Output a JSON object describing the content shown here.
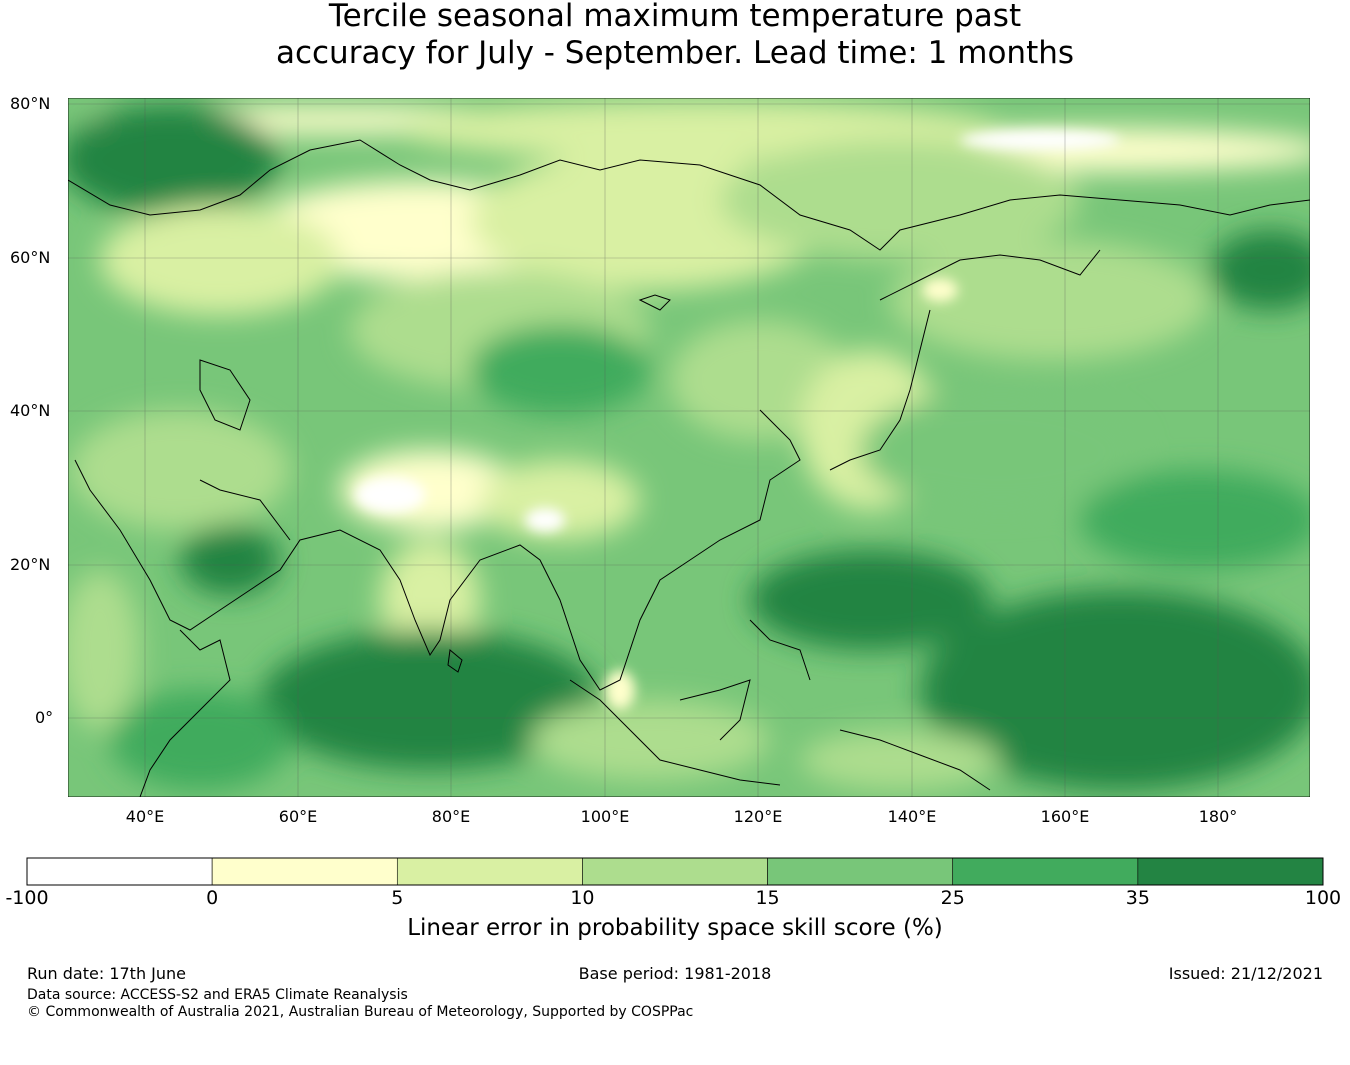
{
  "title": {
    "line1": "Tercile seasonal maximum temperature past",
    "line2": "accuracy for July - September. Lead time: 1 months"
  },
  "map": {
    "lat_labels": [
      "80°N",
      "60°N",
      "40°N",
      "20°N",
      "0°"
    ],
    "lon_labels": [
      "40°E",
      "60°E",
      "80°E",
      "100°E",
      "120°E",
      "140°E",
      "160°E",
      "180°"
    ],
    "lat_range": [
      -10,
      80
    ],
    "lon_range": [
      30,
      192
    ]
  },
  "colorbar": {
    "ticks": [
      "-100",
      "0",
      "5",
      "10",
      "15",
      "25",
      "35",
      "100"
    ],
    "colors": [
      "#ffffff",
      "#ffffcc",
      "#d9f0a3",
      "#addd8e",
      "#78c679",
      "#41ab5d",
      "#238443"
    ],
    "label": "Linear error in probability space skill score (%)"
  },
  "footer": {
    "run_date": "Run date: 17th June",
    "base_period": "Base period: 1981-2018",
    "issued": "Issued: 21/12/2021",
    "data_source": "Data source: ACCESS-S2 and ERA5 Climate Reanalysis",
    "copyright": "© Commonwealth of Australia 2021, Australian Bureau of Meteorology, Supported by COSPPac"
  }
}
